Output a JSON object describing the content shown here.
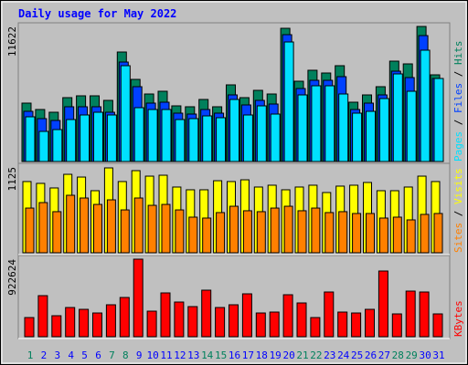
{
  "chart_data": [
    {
      "type": "bar",
      "title": "Daily usage for May 2022",
      "ylim": [
        0,
        11622
      ],
      "yticks": [
        11622
      ],
      "legend_separator": " / ",
      "series": [
        {
          "name": "Hits",
          "color": "#00805c",
          "values": [
            5026,
            4476,
            4240,
            5497,
            5654,
            5654,
            5261,
            9423,
            7067,
            5811,
            6046,
            4790,
            4712,
            5340,
            4712,
            6596,
            5497,
            6125,
            5811,
            11465,
            6910,
            7853,
            7617,
            8245,
            5104,
            5732,
            6439,
            8638,
            8402,
            11622,
            7460
          ]
        },
        {
          "name": "Files",
          "color": "#0040ff",
          "values": [
            4319,
            3691,
            3534,
            4712,
            4712,
            4712,
            4240,
            8559,
            6439,
            5026,
            5104,
            4162,
            4083,
            4476,
            4162,
            5732,
            4869,
            5261,
            4947,
            10915,
            6282,
            6989,
            6989,
            7303,
            4476,
            5026,
            5732,
            7774,
            7224,
            10837,
            7146
          ]
        },
        {
          "name": "Pages",
          "color": "#00e0ff",
          "values": [
            3848,
            2591,
            2748,
            3612,
            4005,
            4240,
            4005,
            8245,
            4633,
            4476,
            4476,
            3612,
            3691,
            3926,
            3769,
            5340,
            4005,
            4790,
            4083,
            10287,
            5732,
            6518,
            6518,
            5811,
            4162,
            4319,
            5418,
            7539,
            6046,
            9580,
            7146
          ]
        }
      ]
    },
    {
      "type": "bar",
      "ylim": [
        0,
        1125
      ],
      "yticks": [
        1125
      ],
      "legend_separator": " / ",
      "series": [
        {
          "name": "Visits",
          "color": "#ffff00",
          "values": [
            934,
            910,
            850,
            1029,
            993,
            814,
            1113,
            934,
            1077,
            1005,
            1017,
            862,
            826,
            826,
            945,
            934,
            957,
            862,
            886,
            826,
            862,
            886,
            790,
            874,
            886,
            922,
            814,
            814,
            862,
            1005,
            934
          ]
        },
        {
          "name": "Sites",
          "color": "#ff8000",
          "values": [
            586,
            658,
            539,
            754,
            718,
            634,
            694,
            562,
            718,
            622,
            634,
            562,
            467,
            455,
            527,
            610,
            551,
            539,
            586,
            610,
            551,
            586,
            527,
            539,
            515,
            515,
            455,
            467,
            431,
            503,
            515
          ]
        }
      ]
    },
    {
      "type": "bar",
      "ylim": [
        0,
        922624
      ],
      "yticks": [
        922624
      ],
      "categories": [
        "1",
        "2",
        "3",
        "4",
        "5",
        "6",
        "7",
        "8",
        "9",
        "10",
        "11",
        "12",
        "13",
        "14",
        "15",
        "16",
        "17",
        "18",
        "19",
        "20",
        "21",
        "22",
        "23",
        "24",
        "25",
        "26",
        "27",
        "28",
        "29",
        "30",
        "31"
      ],
      "highlight_categories": [
        "1",
        "7",
        "8",
        "14",
        "15",
        "21",
        "22",
        "28",
        "29"
      ],
      "highlight_color": "#00805c",
      "series": [
        {
          "name": "KBytes",
          "color": "#ff0000",
          "values": [
            227935,
            488448,
            249645,
            347340,
            325632,
            282214,
            379904,
            466739,
            922624,
            303923,
            521011,
            412468,
            358195,
            553574,
            347340,
            379904,
            510157,
            282214,
            293068,
            499302,
            401613,
            227935,
            531866,
            293068,
            282214,
            325632,
            781519,
            271360,
            542720,
            531866,
            271360
          ]
        }
      ]
    }
  ]
}
